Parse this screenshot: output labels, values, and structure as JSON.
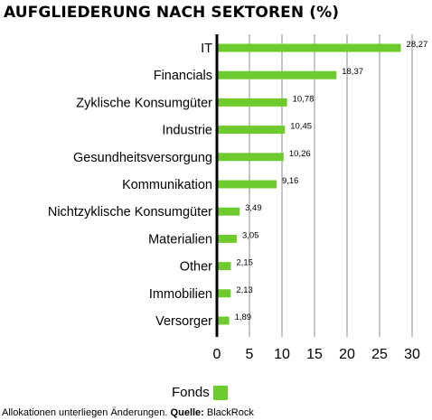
{
  "chart_data": {
    "type": "bar",
    "orientation": "horizontal",
    "title": "AUFGLIEDERUNG NACH SEKTOREN (%)",
    "categories": [
      "IT",
      "Financials",
      "Zyklische Konsumgüter",
      "Industrie",
      "Gesundheitsversorgung",
      "Kommunikation",
      "Nichtzyklische Konsumgüter",
      "Materialien",
      "Other",
      "Immobilien",
      "Versorger"
    ],
    "series": [
      {
        "name": "Fonds",
        "values": [
          28.27,
          18.37,
          10.78,
          10.45,
          10.26,
          9.16,
          3.49,
          3.05,
          2.15,
          2.13,
          1.89
        ],
        "labels": [
          "28,27",
          "18,37",
          "10,78",
          "10,45",
          "10,26",
          "9,16",
          "3,49",
          "3,05",
          "2,15",
          "2,13",
          "1,89"
        ]
      }
    ],
    "xlim": [
      0,
      30
    ],
    "xticks": [
      0,
      5,
      10,
      15,
      20,
      25,
      30
    ],
    "grid": true,
    "legend_position": "bottom",
    "colors": {
      "bar": "#6ecb2e",
      "grid": "#b3b3b3",
      "axis": "#000000"
    }
  },
  "legend": {
    "label": "Fonds"
  },
  "footnote": {
    "text": "Allokationen unterliegen Änderungen.",
    "source_label": "Quelle:",
    "source": "BlackRock"
  }
}
